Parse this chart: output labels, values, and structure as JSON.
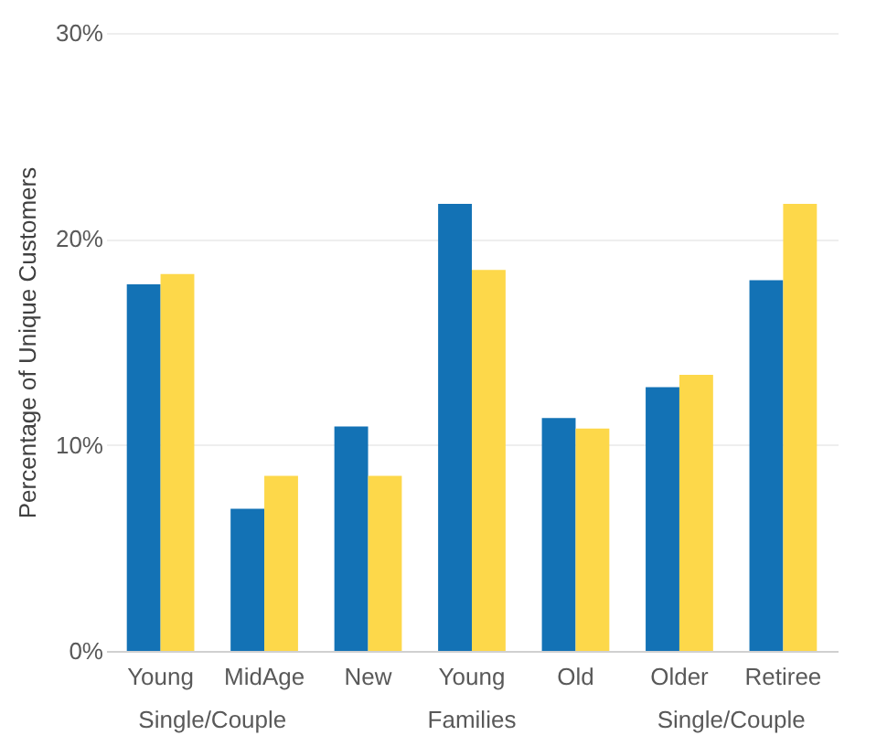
{
  "chart_data": {
    "type": "bar",
    "ylabel": "Percentage of Unique Customers",
    "categories": [
      "Young",
      "MidAge",
      "New",
      "Young",
      "Old",
      "Older",
      "Retiree"
    ],
    "series": [
      {
        "color": "#1372b5",
        "values": [
          17.8,
          6.9,
          10.9,
          21.7,
          11.3,
          12.8,
          18.0
        ]
      },
      {
        "color": "#fdd84a",
        "values": [
          18.3,
          8.5,
          8.5,
          18.5,
          10.8,
          13.4,
          21.7
        ]
      }
    ],
    "ylim": [
      0,
      30
    ],
    "yticks": [
      {
        "value": 0,
        "label": "0%"
      },
      {
        "value": 10,
        "label": "10%"
      },
      {
        "value": 20,
        "label": "20%"
      },
      {
        "value": 30,
        "label": "30%"
      }
    ],
    "grid": "y",
    "annotations": [
      "Single/Couple",
      "Families",
      "Single/Couple"
    ]
  }
}
